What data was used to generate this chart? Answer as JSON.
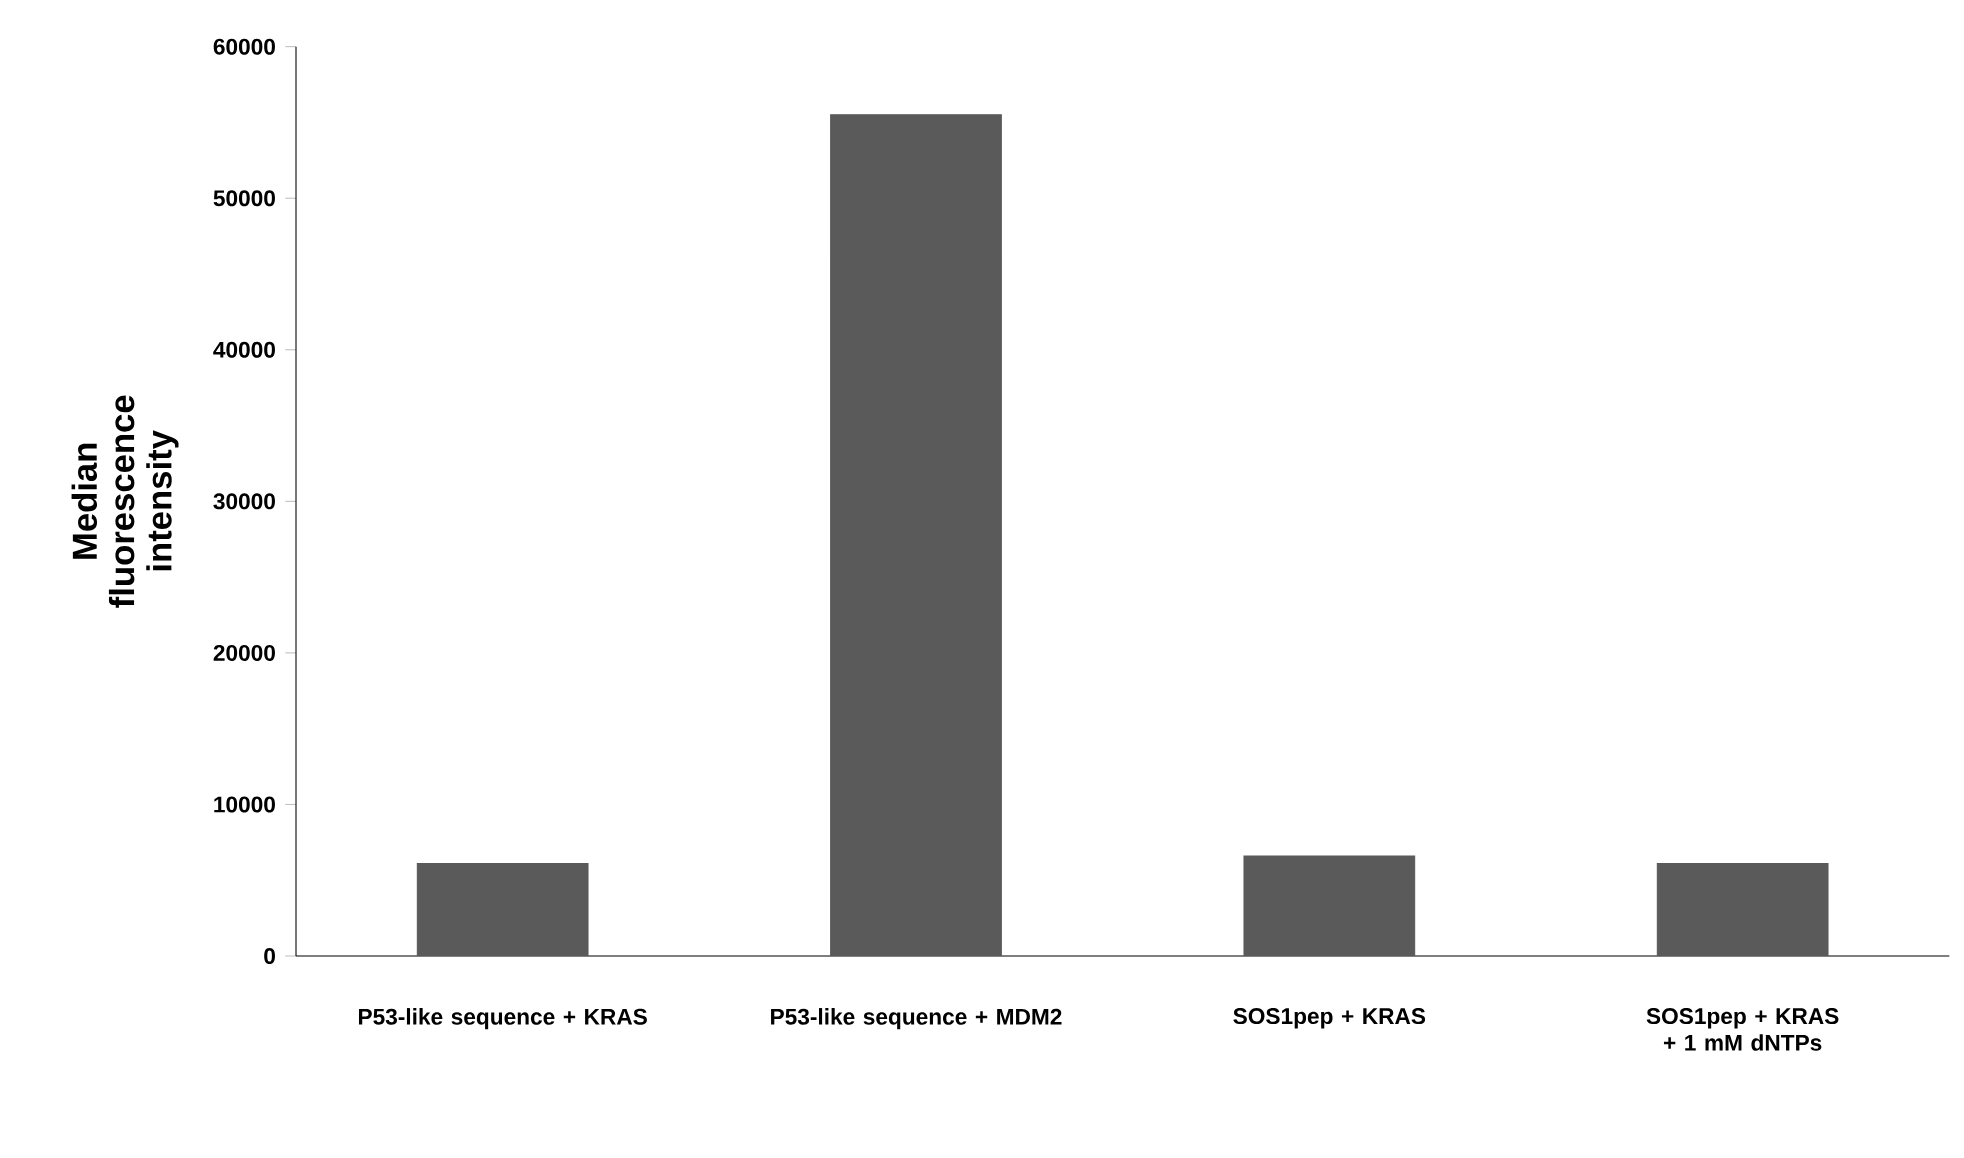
{
  "chart_data": {
    "type": "bar",
    "ylabel": "Median fluorescence intensity",
    "categories": [
      "P53-like sequence + KRAS",
      "P53-like sequence + MDM2",
      "SOS1pep + KRAS",
      "SOS1pep + KRAS + 1 mM dNTPs"
    ],
    "values": [
      6100,
      55500,
      6600,
      6100
    ],
    "color": "#5a5a5a",
    "ylim": [
      0,
      60000
    ],
    "yticks": [
      0,
      10000,
      20000,
      30000,
      40000,
      50000,
      60000
    ]
  }
}
